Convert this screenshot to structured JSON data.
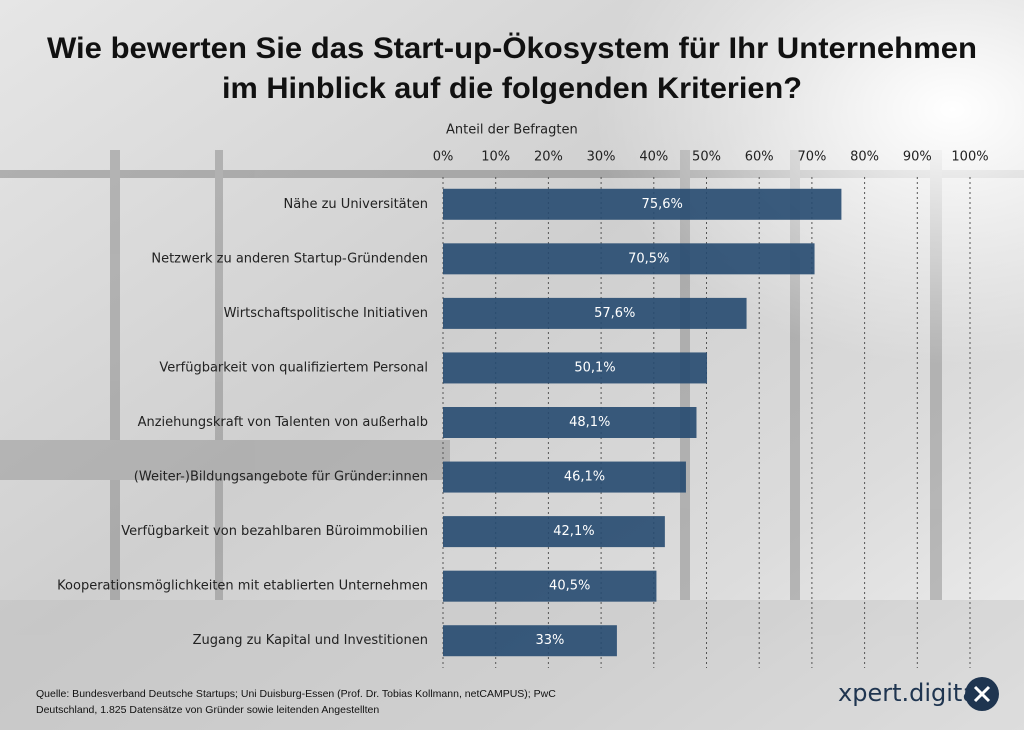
{
  "chart_data": {
    "type": "bar",
    "orientation": "horizontal",
    "title": [
      "Wie bewerten Sie das Start-up-Ökosystem für Ihr Unternehmen",
      "im Hinblick auf die folgenden Kriterien?"
    ],
    "axis_label": "Anteil der Befragten",
    "categories": [
      "Nähe zu Universitäten",
      "Netzwerk zu anderen Startup-Gründenden",
      "Wirtschaftspolitische Initiativen",
      "Verfügbarkeit von qualifiziertem Personal",
      "Anziehungskraft von Talenten von außerhalb",
      "(Weiter-)Bildungsangebote für Gründer:innen",
      "Verfügbarkeit von bezahlbaren Büroimmobilien",
      "Kooperationsmöglichkeiten mit etablierten Unternehmen",
      "Zugang zu Kapital und Investitionen"
    ],
    "values": [
      75.6,
      70.5,
      57.6,
      50.1,
      48.1,
      46.1,
      42.1,
      40.5,
      33
    ],
    "value_labels": [
      "75,6%",
      "70,5%",
      "57,6%",
      "50,1%",
      "48,1%",
      "46,1%",
      "42,1%",
      "40,5%",
      "33%"
    ],
    "color": "#264a70",
    "xlim": [
      0,
      100
    ],
    "xticks": [
      {
        "value": 0,
        "label": "0%"
      },
      {
        "value": 10,
        "label": "10%"
      },
      {
        "value": 20,
        "label": "20%"
      },
      {
        "value": 30,
        "label": "30%"
      },
      {
        "value": 40,
        "label": "40%"
      },
      {
        "value": 50,
        "label": "50%"
      },
      {
        "value": 60,
        "label": "60%"
      },
      {
        "value": 70,
        "label": "70%"
      },
      {
        "value": 80,
        "label": "80%"
      },
      {
        "value": 90,
        "label": "90%"
      },
      {
        "value": 100,
        "label": "100%"
      }
    ],
    "grid": true,
    "source": [
      "Quelle: Bundesverband Deutsche Startups; Uni Duisburg-Essen (Prof. Dr. Tobias Kollmann, netCAMPUS); PwC",
      "Deutschland, 1.825 Datensätze von Gründer sowie leitenden Angestellten"
    ],
    "brand": "xpert.digital"
  }
}
